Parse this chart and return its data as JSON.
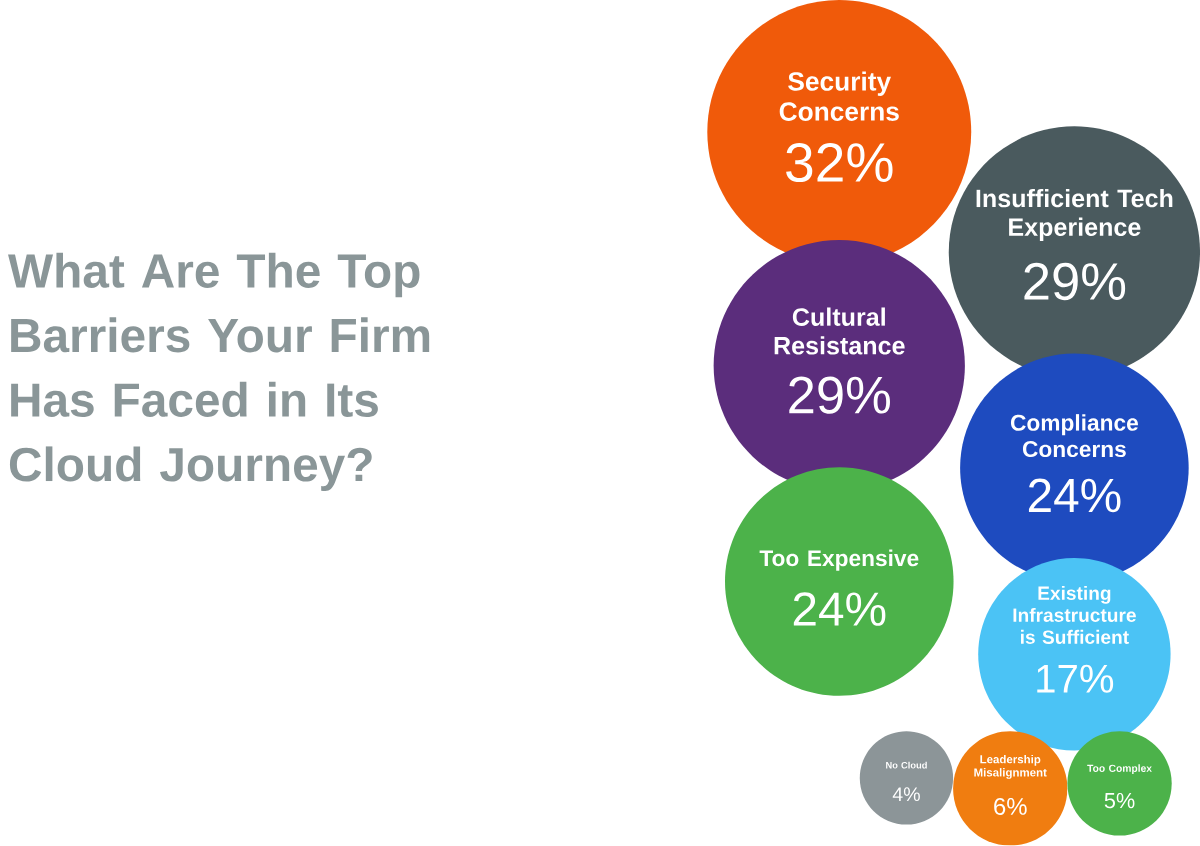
{
  "chart_data": {
    "type": "other",
    "title": "What Are The Top Barriers Your Firm Has Faced in Its Cloud Journey?",
    "categories": [
      "Security Concerns",
      "Insufficient Tech Experience",
      "Cultural Resistance",
      "Compliance Concerns",
      "Too Expensive",
      "Existing Infrastructure is Sufficient",
      "No Cloud",
      "Leadership Misalignment",
      "Too Complex"
    ],
    "values": [
      32,
      29,
      29,
      24,
      24,
      17,
      4,
      6,
      5
    ],
    "value_labels": [
      "32%",
      "29%",
      "29%",
      "24%",
      "24%",
      "17%",
      "4%",
      "6%",
      "5%"
    ],
    "colors": [
      "#f05a0a",
      "#4a5a5e",
      "#5b2d7c",
      "#1e4bbf",
      "#4cb24a",
      "#4bc3f5",
      "#8c9598",
      "#f07d10",
      "#4cb24a"
    ]
  }
}
